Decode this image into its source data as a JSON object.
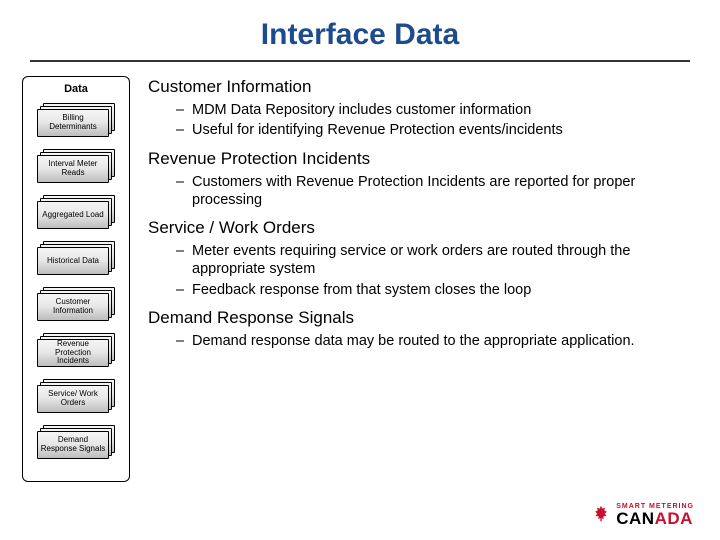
{
  "title": "Interface Data",
  "dataPanel": {
    "heading": "Data",
    "items": [
      "Billing Determinants",
      "Interval Meter Reads",
      "Aggregated Load",
      "Historical Data",
      "Customer Information",
      "Revenue Protection Incidents",
      "Service/ Work Orders",
      "Demand Response Signals"
    ]
  },
  "sections": [
    {
      "heading": "Customer Information",
      "bullets": [
        "MDM Data Repository includes customer information",
        "Useful for identifying Revenue Protection events/incidents"
      ]
    },
    {
      "heading": "Revenue Protection Incidents",
      "bullets": [
        "Customers with Revenue Protection Incidents are reported for proper processing"
      ]
    },
    {
      "heading": "Service / Work Orders",
      "bullets": [
        "Meter events requiring service or work orders are routed through the appropriate system",
        "Feedback response from that system closes the loop"
      ]
    },
    {
      "heading": "Demand Response Signals",
      "bullets": [
        "Demand response data may be routed to the appropriate application."
      ]
    }
  ],
  "logo": {
    "top": "SMART METERING",
    "main1": "C",
    "leaf": "A",
    "main2": "N",
    "red": "ADA"
  },
  "colors": {
    "titleColor": "#1e4b8e",
    "accentRed": "#c8102e"
  }
}
